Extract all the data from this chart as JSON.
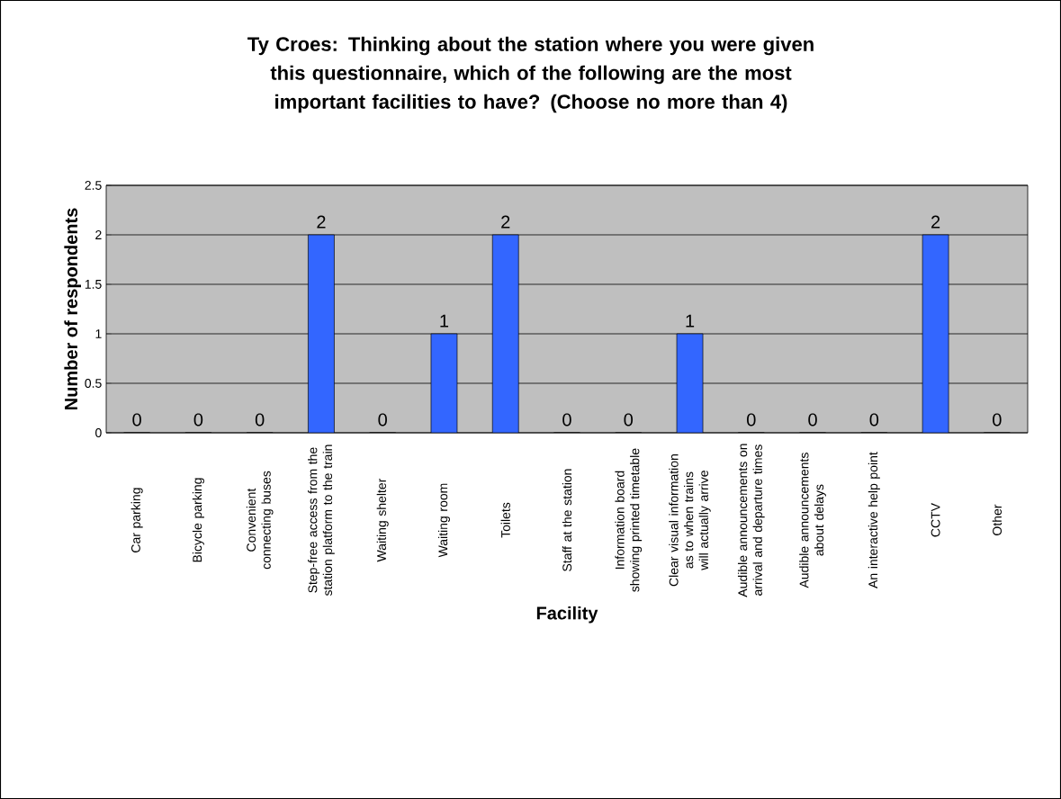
{
  "chart_data": {
    "type": "bar",
    "title": "Ty Croes: Thinking about the station where you were given this questionnaire, which of the following are the most important facilities to have? (Choose no more than 4)",
    "xlabel": "Facility",
    "ylabel": "Number of respondents",
    "categories": [
      "Car parking",
      "Bicycle parking",
      "Convenient connecting buses",
      "Step-free access from the station platform to the train",
      "Waiting shelter",
      "Waiting room",
      "Toilets",
      "Staff at the station",
      "Information board showing printed timetable",
      "Clear visual information as to when trains will actually arrive",
      "Audible announcements on arrival and departure times",
      "Audible announcements about delays",
      "An interactive help point",
      "CCTV",
      "Other"
    ],
    "values": [
      0,
      0,
      0,
      2,
      0,
      1,
      2,
      0,
      0,
      1,
      0,
      0,
      0,
      2,
      0
    ],
    "color": "#3366ff",
    "ylim": [
      0,
      2.5
    ],
    "yticks": [
      0,
      0.5,
      1,
      1.5,
      2,
      2.5
    ],
    "grid": "y",
    "data_labels": true
  }
}
